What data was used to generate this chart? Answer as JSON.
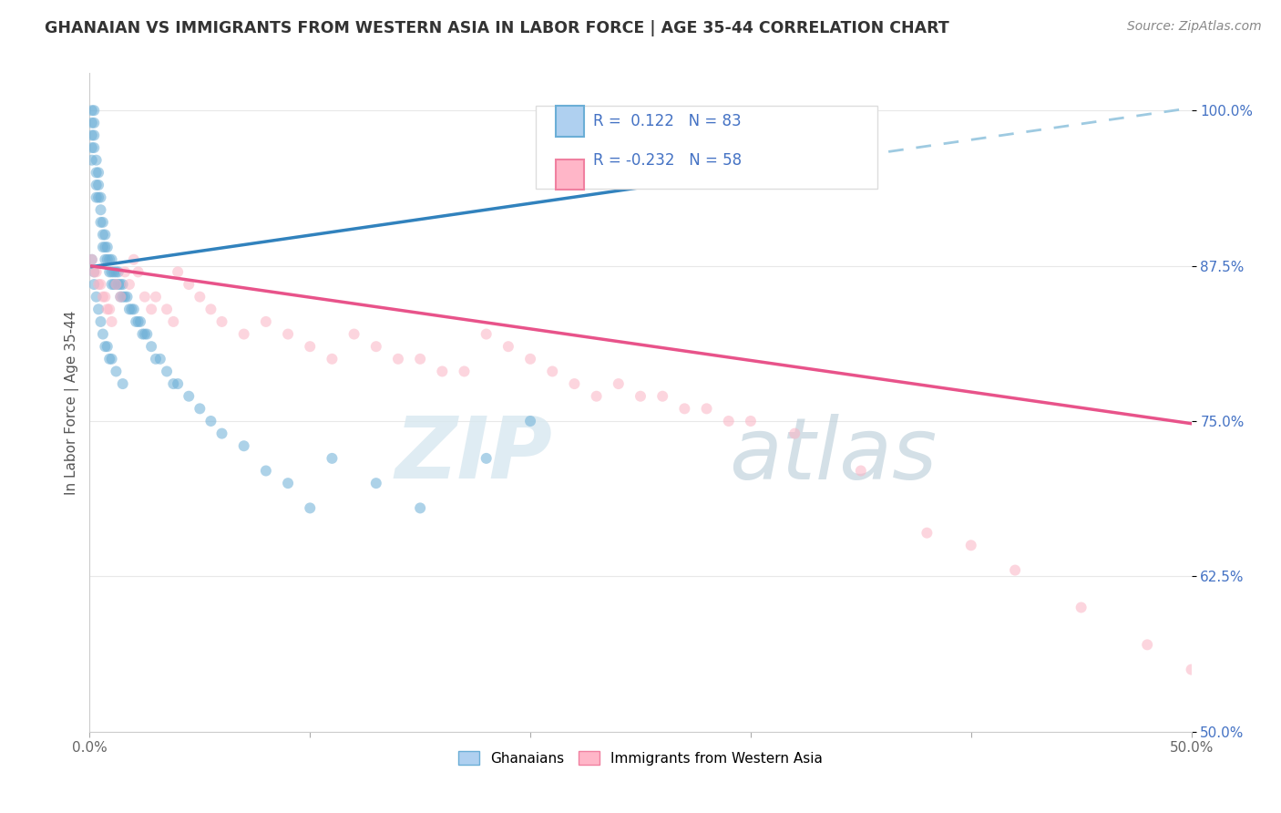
{
  "title": "GHANAIAN VS IMMIGRANTS FROM WESTERN ASIA IN LABOR FORCE | AGE 35-44 CORRELATION CHART",
  "source": "Source: ZipAtlas.com",
  "ylabel": "In Labor Force | Age 35-44",
  "xlim": [
    0.0,
    0.5
  ],
  "ylim": [
    0.5,
    1.03
  ],
  "xticks": [
    0.0,
    0.1,
    0.2,
    0.3,
    0.4,
    0.5
  ],
  "xtick_labels": [
    "0.0%",
    "",
    "",
    "",
    "",
    "50.0%"
  ],
  "yticks": [
    0.5,
    0.625,
    0.75,
    0.875,
    1.0
  ],
  "ytick_labels": [
    "50.0%",
    "62.5%",
    "75.0%",
    "87.5%",
    "100.0%"
  ],
  "blue_scatter_x": [
    0.001,
    0.001,
    0.001,
    0.001,
    0.001,
    0.002,
    0.002,
    0.002,
    0.002,
    0.003,
    0.003,
    0.003,
    0.003,
    0.004,
    0.004,
    0.004,
    0.005,
    0.005,
    0.005,
    0.006,
    0.006,
    0.006,
    0.007,
    0.007,
    0.007,
    0.008,
    0.008,
    0.009,
    0.009,
    0.01,
    0.01,
    0.01,
    0.011,
    0.011,
    0.012,
    0.012,
    0.013,
    0.013,
    0.014,
    0.014,
    0.015,
    0.015,
    0.016,
    0.017,
    0.018,
    0.019,
    0.02,
    0.021,
    0.022,
    0.023,
    0.024,
    0.025,
    0.026,
    0.028,
    0.03,
    0.032,
    0.035,
    0.038,
    0.04,
    0.045,
    0.05,
    0.055,
    0.06,
    0.07,
    0.08,
    0.09,
    0.1,
    0.11,
    0.13,
    0.15,
    0.18,
    0.2,
    0.001,
    0.002,
    0.002,
    0.003,
    0.004,
    0.005,
    0.006,
    0.007,
    0.008,
    0.009,
    0.01,
    0.012,
    0.015
  ],
  "blue_scatter_y": [
    1.0,
    0.99,
    0.98,
    0.97,
    0.96,
    1.0,
    0.99,
    0.98,
    0.97,
    0.96,
    0.95,
    0.94,
    0.93,
    0.95,
    0.94,
    0.93,
    0.93,
    0.92,
    0.91,
    0.91,
    0.9,
    0.89,
    0.9,
    0.89,
    0.88,
    0.89,
    0.88,
    0.88,
    0.87,
    0.88,
    0.87,
    0.86,
    0.87,
    0.86,
    0.87,
    0.86,
    0.87,
    0.86,
    0.86,
    0.85,
    0.86,
    0.85,
    0.85,
    0.85,
    0.84,
    0.84,
    0.84,
    0.83,
    0.83,
    0.83,
    0.82,
    0.82,
    0.82,
    0.81,
    0.8,
    0.8,
    0.79,
    0.78,
    0.78,
    0.77,
    0.76,
    0.75,
    0.74,
    0.73,
    0.71,
    0.7,
    0.68,
    0.72,
    0.7,
    0.68,
    0.72,
    0.75,
    0.88,
    0.87,
    0.86,
    0.85,
    0.84,
    0.83,
    0.82,
    0.81,
    0.81,
    0.8,
    0.8,
    0.79,
    0.78
  ],
  "pink_scatter_x": [
    0.001,
    0.002,
    0.003,
    0.004,
    0.005,
    0.006,
    0.007,
    0.008,
    0.009,
    0.01,
    0.012,
    0.014,
    0.016,
    0.018,
    0.02,
    0.022,
    0.025,
    0.028,
    0.03,
    0.035,
    0.038,
    0.04,
    0.045,
    0.05,
    0.055,
    0.06,
    0.07,
    0.08,
    0.09,
    0.1,
    0.11,
    0.12,
    0.13,
    0.14,
    0.15,
    0.16,
    0.17,
    0.18,
    0.19,
    0.2,
    0.21,
    0.22,
    0.23,
    0.24,
    0.25,
    0.26,
    0.27,
    0.28,
    0.29,
    0.3,
    0.32,
    0.35,
    0.38,
    0.4,
    0.42,
    0.45,
    0.48,
    0.5
  ],
  "pink_scatter_y": [
    0.88,
    0.87,
    0.87,
    0.86,
    0.86,
    0.85,
    0.85,
    0.84,
    0.84,
    0.83,
    0.86,
    0.85,
    0.87,
    0.86,
    0.88,
    0.87,
    0.85,
    0.84,
    0.85,
    0.84,
    0.83,
    0.87,
    0.86,
    0.85,
    0.84,
    0.83,
    0.82,
    0.83,
    0.82,
    0.81,
    0.8,
    0.82,
    0.81,
    0.8,
    0.8,
    0.79,
    0.79,
    0.82,
    0.81,
    0.8,
    0.79,
    0.78,
    0.77,
    0.78,
    0.77,
    0.77,
    0.76,
    0.76,
    0.75,
    0.75,
    0.74,
    0.71,
    0.66,
    0.65,
    0.63,
    0.6,
    0.57,
    0.55
  ],
  "blue_line_color": "#3182bd",
  "blue_dashed_color": "#9ecae1",
  "pink_line_color": "#e8538a",
  "dot_color_blue": "#6baed6",
  "dot_color_pink": "#fbb4c4",
  "dot_alpha": 0.55,
  "dot_size": 75,
  "watermark_zip": "ZIP",
  "watermark_atlas": "atlas",
  "background_color": "#ffffff",
  "grid_color": "#e8e8e8"
}
